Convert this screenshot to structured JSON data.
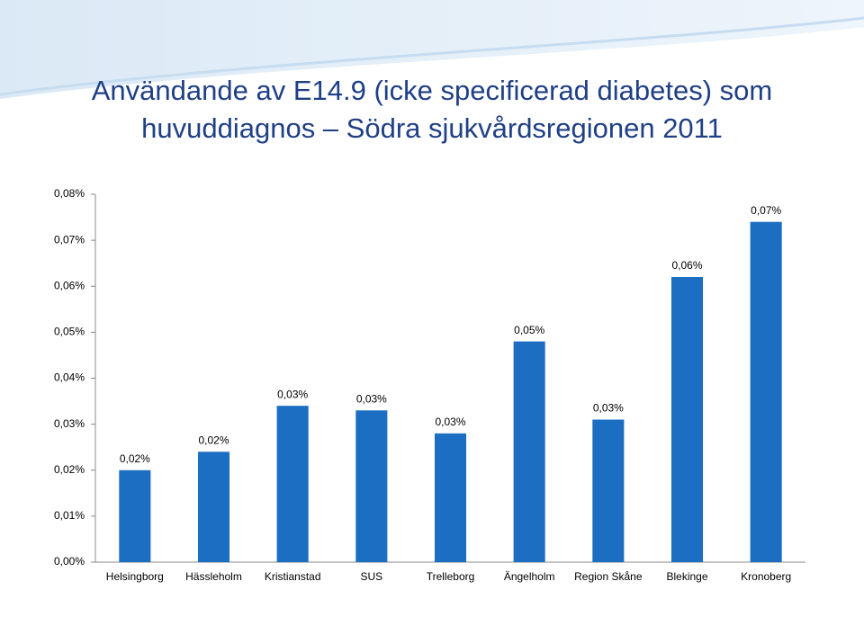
{
  "chart_data": {
    "type": "bar",
    "title": "Användande av E14.9 (icke specificerad diabetes) som huvuddiagnos – Södra sjukvårdsregionen 2011",
    "categories": [
      "Helsingborg",
      "Hässleholm",
      "Kristianstad",
      "SUS",
      "Trelleborg",
      "Ängelholm",
      "Region Skåne",
      "Blekinge",
      "Kronoberg"
    ],
    "values": [
      0.02,
      0.024,
      0.034,
      0.033,
      0.028,
      0.048,
      0.031,
      0.062,
      0.074
    ],
    "value_labels": [
      "0,02%",
      "0,02%",
      "0,03%",
      "0,03%",
      "0,03%",
      "0,05%",
      "0,03%",
      "0,06%",
      "0,07%"
    ],
    "color": "#1b6ec2",
    "ylim": [
      0,
      0.08
    ],
    "yticks": [
      {
        "value": 0,
        "label": "0,00%"
      },
      {
        "value": 0.01,
        "label": "0,01%"
      },
      {
        "value": 0.02,
        "label": "0,02%"
      },
      {
        "value": 0.03,
        "label": "0,03%"
      },
      {
        "value": 0.04,
        "label": "0,04%"
      },
      {
        "value": 0.05,
        "label": "0,05%"
      },
      {
        "value": 0.06,
        "label": "0,06%"
      },
      {
        "value": 0.07,
        "label": "0,07%"
      },
      {
        "value": 0.08,
        "label": "0,08%"
      }
    ],
    "grid": false
  }
}
